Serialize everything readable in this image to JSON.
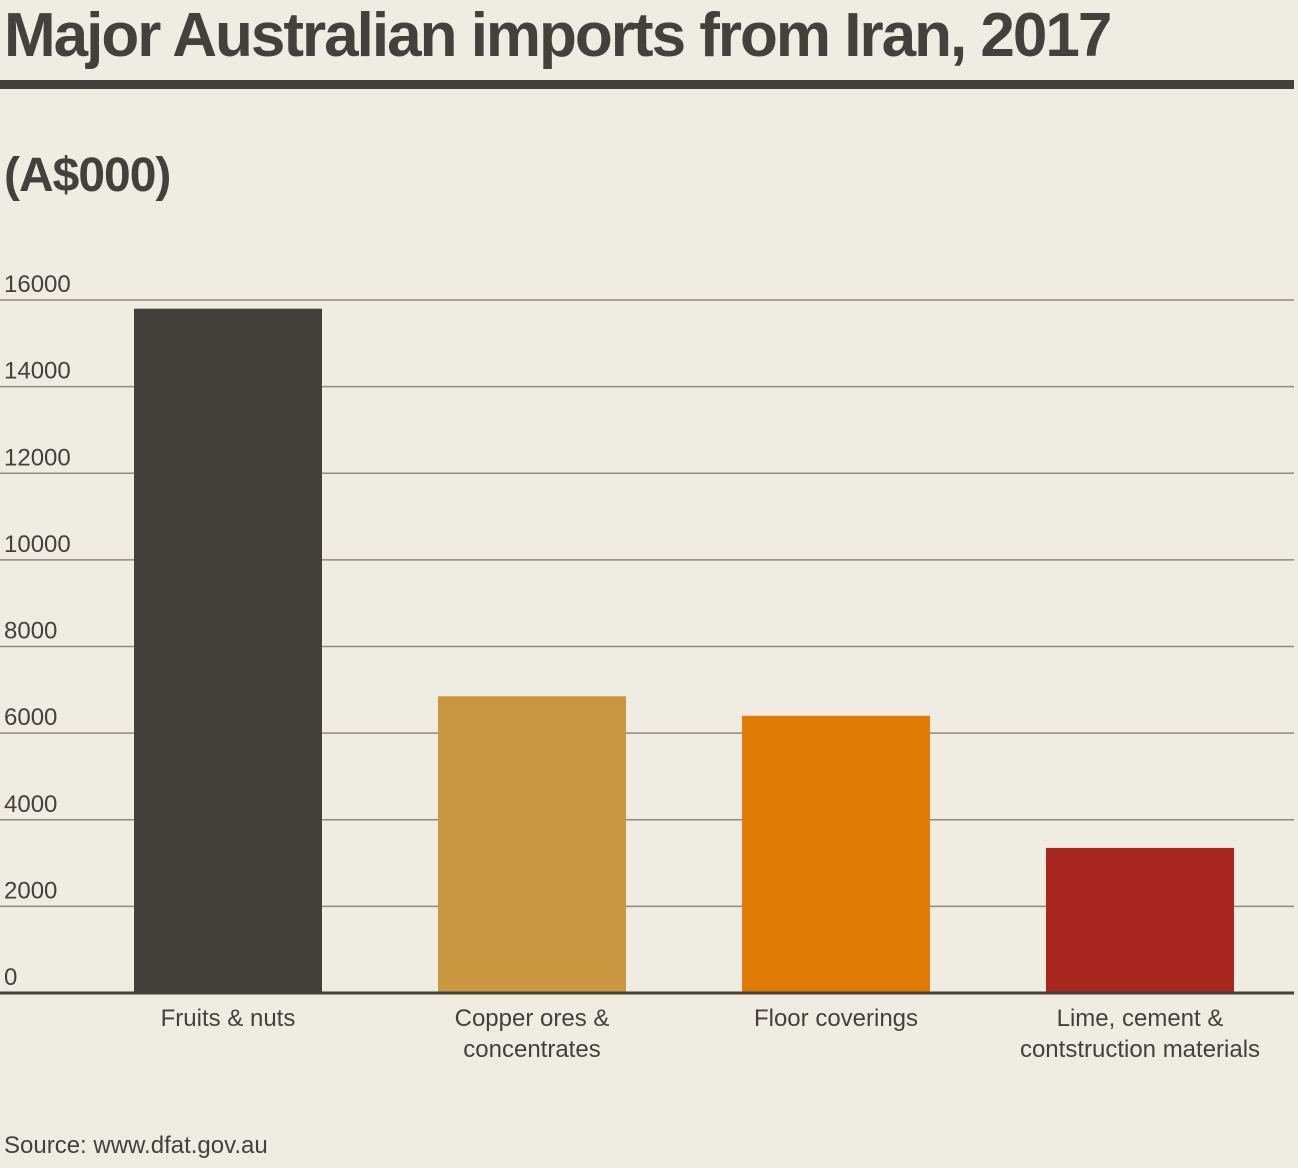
{
  "chart_data": {
    "type": "bar",
    "title": "Major Australian imports from Iran, 2017",
    "unit_label": "(A$000)",
    "categories": [
      "Fruits & nuts",
      "Copper ores & concentrates",
      "Floor coverings",
      "Lime, cement & contstruction materials"
    ],
    "category_label_lines": [
      [
        "Fruits & nuts"
      ],
      [
        "Copper ores &",
        "concentrates"
      ],
      [
        "Floor coverings"
      ],
      [
        "Lime, cement &",
        "contstruction materials"
      ]
    ],
    "values": [
      15800,
      6850,
      6400,
      3350
    ],
    "bar_colors": [
      "#45413a",
      "#c9973f",
      "#e07b06",
      "#a8271e"
    ],
    "ylim": [
      0,
      16000
    ],
    "yticks": [
      0,
      2000,
      4000,
      6000,
      8000,
      10000,
      12000,
      14000,
      16000
    ],
    "ytick_labels": [
      "0",
      "2000",
      "4000",
      "6000",
      "8000",
      "10000",
      "12000",
      "14000",
      "16000"
    ],
    "grid": true,
    "legend": "none",
    "xlabel": "",
    "ylabel": "(A$000)",
    "source": "Source: www.dfat.gov.au"
  },
  "colors": {
    "background": "#f1ece1",
    "text": "#45413a",
    "grid": "#8f8a80",
    "axis": "#45413a"
  }
}
